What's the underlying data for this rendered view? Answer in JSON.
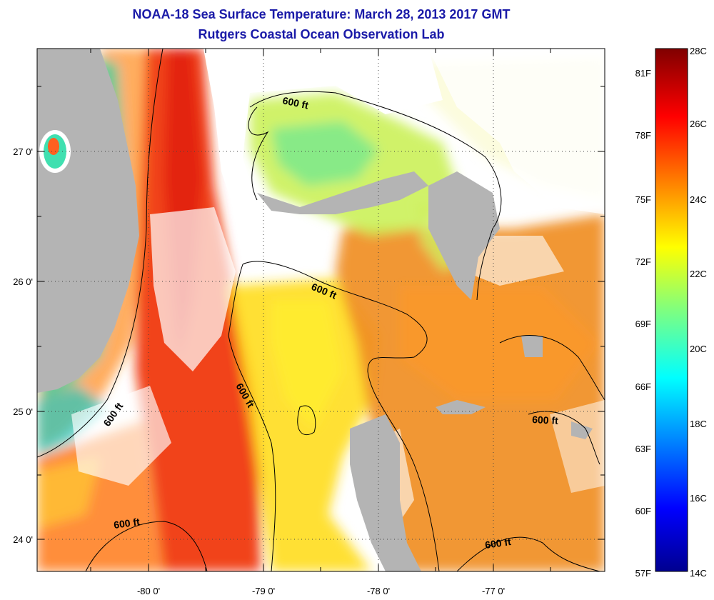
{
  "title": {
    "line1": "NOAA-18 Sea Surface Temperature:  March 28, 2013 2017 GMT",
    "line2": "Rutgers Coastal Ocean Observation Lab"
  },
  "map": {
    "lon_ticks": [
      "-80 0'",
      "-79 0'",
      "-78 0'",
      "-77 0'"
    ],
    "lat_ticks": [
      "27 0'",
      "26 0'",
      "25 0'",
      "24 0'"
    ],
    "contour_labels": [
      "600 ft",
      "600 ft",
      "600 ft",
      "600 ft",
      "600 ft",
      "600 ft"
    ]
  },
  "colorbar": {
    "f_labels": [
      "81F",
      "78F",
      "75F",
      "72F",
      "69F",
      "66F",
      "63F",
      "60F",
      "57F"
    ],
    "c_labels": [
      "28C",
      "26C",
      "24C",
      "22C",
      "20C",
      "18C",
      "16C",
      "14C"
    ]
  },
  "colors": {
    "land": "#b4b4b4",
    "title": "#1a1aa8"
  }
}
